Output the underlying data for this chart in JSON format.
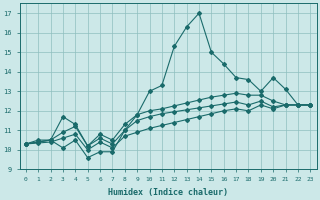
{
  "xlabel": "Humidex (Indice chaleur)",
  "bg_color": "#cce8e8",
  "grid_color": "#8fbfbf",
  "line_color": "#1a6b6b",
  "xlim": [
    -0.5,
    23.5
  ],
  "ylim": [
    9.0,
    17.5
  ],
  "yticks": [
    9,
    10,
    11,
    12,
    13,
    14,
    15,
    16,
    17
  ],
  "xticks": [
    0,
    1,
    2,
    3,
    4,
    5,
    6,
    7,
    8,
    9,
    10,
    11,
    12,
    13,
    14,
    15,
    16,
    17,
    18,
    19,
    20,
    21,
    22,
    23
  ],
  "series1": [
    10.3,
    10.5,
    10.5,
    10.1,
    10.5,
    9.6,
    9.9,
    9.9,
    11.0,
    11.8,
    13.0,
    13.3,
    15.3,
    16.3,
    17.0,
    15.0,
    14.4,
    13.7,
    13.6,
    13.0,
    13.7,
    13.1,
    12.3,
    12.3
  ],
  "series2": [
    10.3,
    10.4,
    10.5,
    11.7,
    11.3,
    10.2,
    10.8,
    10.5,
    11.3,
    11.8,
    12.0,
    12.1,
    12.25,
    12.4,
    12.55,
    12.7,
    12.8,
    12.9,
    12.8,
    12.8,
    12.5,
    12.3,
    12.3,
    12.3
  ],
  "series3": [
    10.3,
    10.4,
    10.5,
    10.9,
    11.2,
    10.2,
    10.6,
    10.3,
    11.0,
    11.5,
    11.7,
    11.85,
    11.95,
    12.05,
    12.15,
    12.25,
    12.35,
    12.45,
    12.3,
    12.5,
    12.2,
    12.3,
    12.3,
    12.3
  ],
  "series4": [
    10.3,
    10.35,
    10.4,
    10.6,
    10.8,
    10.0,
    10.4,
    10.1,
    10.7,
    10.9,
    11.1,
    11.25,
    11.4,
    11.55,
    11.7,
    11.85,
    12.0,
    12.1,
    12.0,
    12.3,
    12.1,
    12.3,
    12.3,
    12.3
  ]
}
